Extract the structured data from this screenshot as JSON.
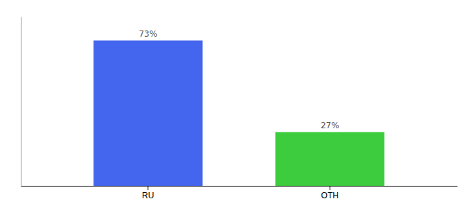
{
  "chart_data": {
    "type": "bar",
    "categories": [
      "RU",
      "OTH"
    ],
    "values": [
      73,
      27
    ],
    "value_labels": [
      "73%",
      "27%"
    ],
    "colors": [
      "#4466ee",
      "#3dcc3d"
    ],
    "ylim": [
      0,
      85
    ],
    "data_labels": true,
    "tick_labels": "x",
    "grid": false
  }
}
